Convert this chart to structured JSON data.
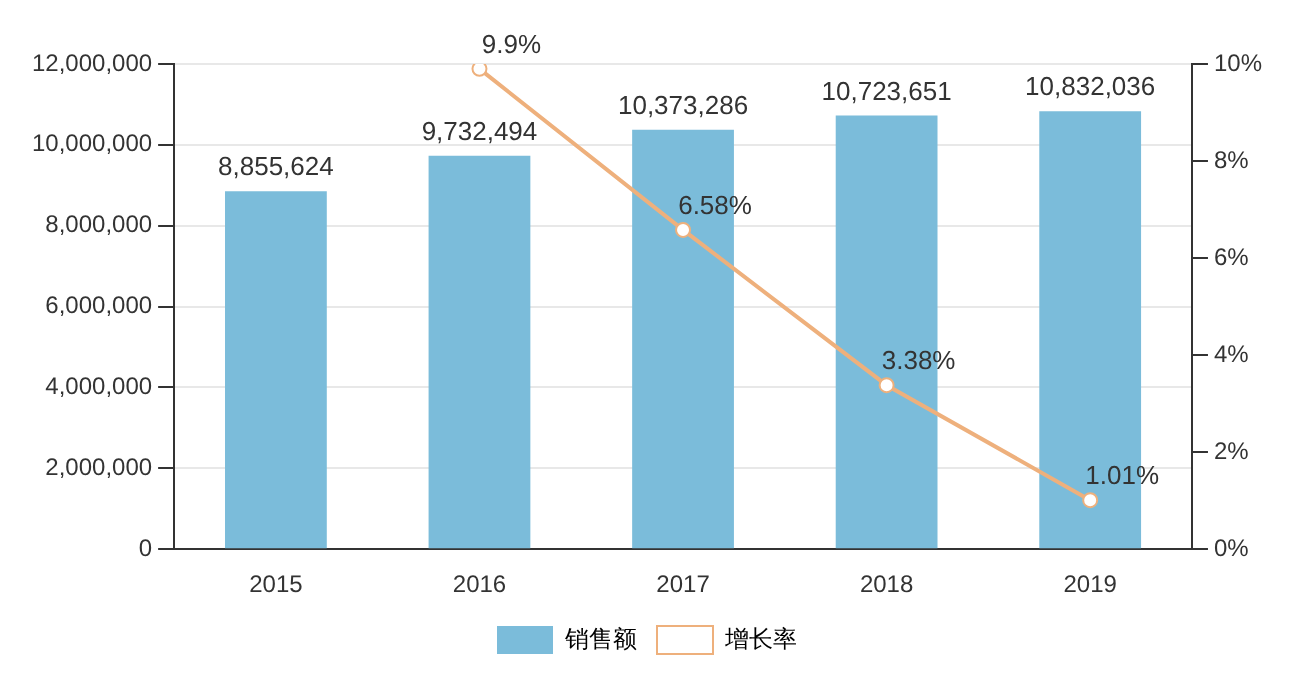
{
  "chart_data": {
    "type": "bar",
    "categories": [
      "2015",
      "2016",
      "2017",
      "2018",
      "2019"
    ],
    "series": [
      {
        "name": "销售额",
        "color": "#7bbcda",
        "values": [
          8855624,
          9732494,
          10373286,
          10723651,
          10832036
        ],
        "value_labels": [
          "8,855,624",
          "9,732,494",
          "10,373,286",
          "10,723,651",
          "10,832,036"
        ]
      },
      {
        "name": "增长率",
        "type": "line",
        "axis": "y2",
        "color": "#eeb07c",
        "marker": "circle",
        "values": [
          null,
          9.9,
          6.58,
          3.38,
          1.01
        ],
        "value_labels": [
          null,
          "9.9%",
          "6.58%",
          "3.38%",
          "1.01%"
        ]
      }
    ],
    "ylim": [
      0,
      12000000
    ],
    "yticks": [
      {
        "value": 0,
        "label": "0"
      },
      {
        "value": 2000000,
        "label": "2,000,000"
      },
      {
        "value": 4000000,
        "label": "4,000,000"
      },
      {
        "value": 6000000,
        "label": "6,000,000"
      },
      {
        "value": 8000000,
        "label": "8,000,000"
      },
      {
        "value": 10000000,
        "label": "10,000,000"
      },
      {
        "value": 12000000,
        "label": "12,000,000"
      }
    ],
    "y2lim": [
      0,
      10
    ],
    "y2ticks": [
      {
        "value": 0,
        "label": "0%"
      },
      {
        "value": 2,
        "label": "2%"
      },
      {
        "value": 4,
        "label": "4%"
      },
      {
        "value": 6,
        "label": "6%"
      },
      {
        "value": 8,
        "label": "8%"
      },
      {
        "value": 10,
        "label": "10%"
      }
    ],
    "grid": "y",
    "legend": "bottom"
  }
}
